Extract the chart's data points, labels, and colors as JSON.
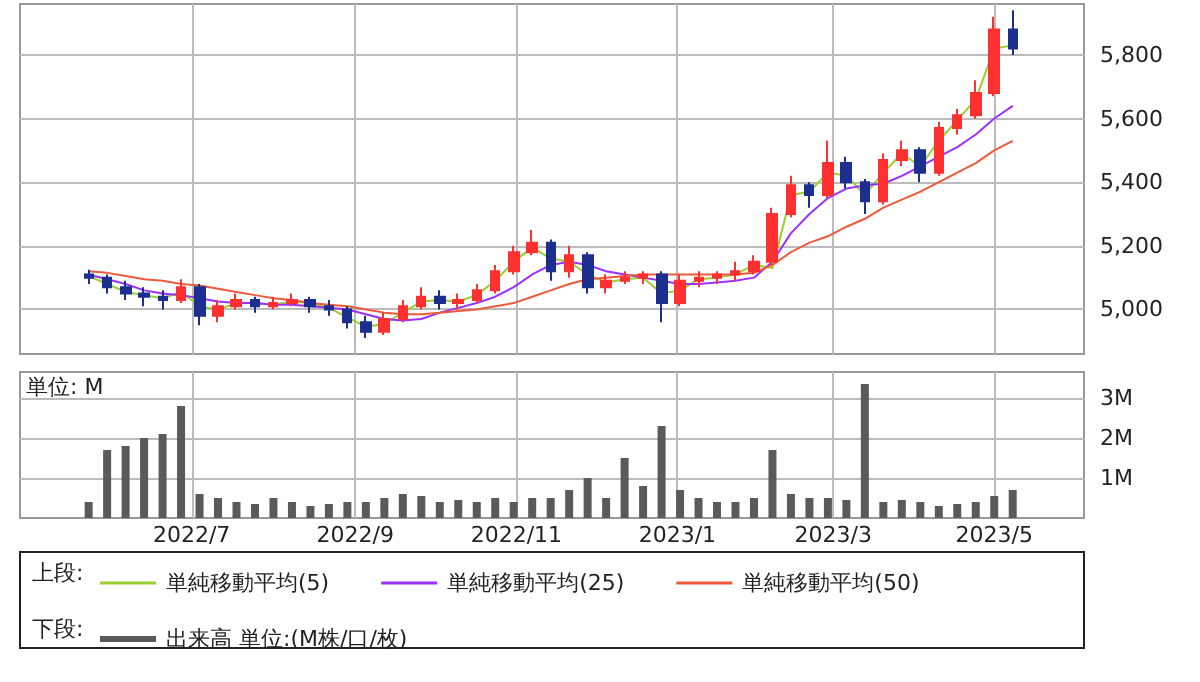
{
  "chart_data": [
    {
      "type": "candlestick",
      "legend_title": "上段:",
      "legend": "bottom",
      "grid": true,
      "tick_labels": "y",
      "marker": "none",
      "x": [
        "2022-05-23",
        "2022-05-30",
        "2022-06-06",
        "2022-06-13",
        "2022-06-20",
        "2022-06-27",
        "2022-07-04",
        "2022-07-11",
        "2022-07-18",
        "2022-07-25",
        "2022-08-01",
        "2022-08-08",
        "2022-08-15",
        "2022-08-22",
        "2022-08-29",
        "2022-09-05",
        "2022-09-12",
        "2022-09-19",
        "2022-09-26",
        "2022-10-03",
        "2022-10-10",
        "2022-10-17",
        "2022-10-24",
        "2022-10-31",
        "2022-11-07",
        "2022-11-14",
        "2022-11-21",
        "2022-11-28",
        "2022-12-05",
        "2022-12-12",
        "2022-12-19",
        "2022-12-26",
        "2023-01-02",
        "2023-01-09",
        "2023-01-16",
        "2023-01-23",
        "2023-01-30",
        "2023-02-06",
        "2023-02-13",
        "2023-02-20",
        "2023-02-27",
        "2023-03-06",
        "2023-03-13",
        "2023-03-20",
        "2023-03-27",
        "2023-04-03",
        "2023-04-10",
        "2023-04-17",
        "2023-04-24",
        "2023-05-01",
        "2023-05-08"
      ],
      "ohlc": [
        [
          5110,
          5125,
          5080,
          5100
        ],
        [
          5100,
          5110,
          5050,
          5070
        ],
        [
          5070,
          5090,
          5030,
          5050
        ],
        [
          5050,
          5070,
          5010,
          5040
        ],
        [
          5040,
          5060,
          5000,
          5030
        ],
        [
          5030,
          5095,
          5020,
          5070
        ],
        [
          5070,
          5080,
          4950,
          4980
        ],
        [
          4980,
          5030,
          4960,
          5010
        ],
        [
          5010,
          5050,
          5000,
          5030
        ],
        [
          5030,
          5040,
          4990,
          5010
        ],
        [
          5010,
          5040,
          5000,
          5020
        ],
        [
          5020,
          5050,
          5010,
          5030
        ],
        [
          5030,
          5040,
          4990,
          5010
        ],
        [
          5010,
          5030,
          4980,
          5000
        ],
        [
          5000,
          5010,
          4940,
          4960
        ],
        [
          4960,
          4980,
          4910,
          4930
        ],
        [
          4930,
          4990,
          4920,
          4970
        ],
        [
          4970,
          5030,
          4960,
          5010
        ],
        [
          5010,
          5070,
          5000,
          5040
        ],
        [
          5040,
          5060,
          5000,
          5020
        ],
        [
          5020,
          5050,
          5000,
          5030
        ],
        [
          5030,
          5080,
          5020,
          5060
        ],
        [
          5060,
          5140,
          5050,
          5120
        ],
        [
          5120,
          5200,
          5110,
          5180
        ],
        [
          5180,
          5250,
          5170,
          5210
        ],
        [
          5210,
          5220,
          5090,
          5120
        ],
        [
          5120,
          5200,
          5100,
          5170
        ],
        [
          5170,
          5180,
          5050,
          5070
        ],
        [
          5070,
          5110,
          5050,
          5090
        ],
        [
          5090,
          5120,
          5080,
          5100
        ],
        [
          5100,
          5120,
          5080,
          5110
        ],
        [
          5110,
          5120,
          4960,
          5020
        ],
        [
          5020,
          5110,
          5010,
          5090
        ],
        [
          5090,
          5120,
          5070,
          5100
        ],
        [
          5100,
          5120,
          5080,
          5110
        ],
        [
          5110,
          5150,
          5090,
          5120
        ],
        [
          5120,
          5170,
          5110,
          5150
        ],
        [
          5150,
          5320,
          5140,
          5300
        ],
        [
          5300,
          5420,
          5290,
          5390
        ],
        [
          5390,
          5400,
          5320,
          5360
        ],
        [
          5360,
          5530,
          5350,
          5460
        ],
        [
          5460,
          5480,
          5380,
          5400
        ],
        [
          5400,
          5410,
          5300,
          5340
        ],
        [
          5340,
          5490,
          5330,
          5470
        ],
        [
          5470,
          5530,
          5450,
          5500
        ],
        [
          5500,
          5510,
          5400,
          5430
        ],
        [
          5430,
          5590,
          5420,
          5570
        ],
        [
          5570,
          5630,
          5550,
          5610
        ],
        [
          5610,
          5720,
          5600,
          5680
        ],
        [
          5680,
          5920,
          5670,
          5880
        ],
        [
          5880,
          5940,
          5800,
          5820
        ]
      ],
      "series": [
        {
          "type": "line",
          "name": "単純移動平均(5)",
          "color": "#9acd32",
          "values": [
            5105,
            5080,
            5055,
            5045,
            5035,
            5055,
            5010,
            5000,
            5020,
            5020,
            5015,
            5025,
            5020,
            5005,
            4975,
            4945,
            4955,
            4990,
            5025,
            5030,
            5025,
            5045,
            5090,
            5150,
            5195,
            5160,
            5150,
            5110,
            5085,
            5095,
            5100,
            5050,
            5060,
            5095,
            5100,
            5110,
            5140,
            5130,
            5360,
            5370,
            5430,
            5420,
            5360,
            5430,
            5490,
            5450,
            5530,
            5595,
            5660,
            5820,
            5830
          ]
        },
        {
          "type": "line",
          "name": "単純移動平均(25)",
          "color": "#9b30ff",
          "values": [
            5110,
            5095,
            5080,
            5060,
            5050,
            5045,
            5035,
            5025,
            5020,
            5020,
            5015,
            5015,
            5010,
            5005,
            5000,
            4985,
            4970,
            4965,
            4970,
            4990,
            5005,
            5020,
            5040,
            5070,
            5110,
            5140,
            5150,
            5140,
            5120,
            5110,
            5100,
            5090,
            5080,
            5080,
            5085,
            5090,
            5100,
            5150,
            5240,
            5300,
            5350,
            5380,
            5390,
            5395,
            5420,
            5450,
            5480,
            5510,
            5550,
            5600,
            5640
          ]
        },
        {
          "type": "line",
          "name": "単純移動平均(50)",
          "color": "#f05a3c",
          "values": [
            5120,
            5115,
            5105,
            5095,
            5090,
            5080,
            5075,
            5065,
            5055,
            5045,
            5035,
            5030,
            5020,
            5015,
            5010,
            5000,
            4990,
            4985,
            4985,
            4990,
            4995,
            5000,
            5010,
            5020,
            5040,
            5060,
            5080,
            5095,
            5100,
            5105,
            5110,
            5110,
            5110,
            5110,
            5110,
            5110,
            5115,
            5140,
            5180,
            5210,
            5230,
            5260,
            5285,
            5320,
            5345,
            5370,
            5400,
            5430,
            5460,
            5500,
            5530
          ]
        }
      ],
      "xlim": [
        "2022-04-27",
        "2023-06-04"
      ],
      "xticks": [
        "2022-07-01",
        "2022-09-01",
        "2022-11-01",
        "2023-01-01",
        "2023-03-01",
        "2023-05-01"
      ],
      "ylim": [
        4860,
        5960
      ],
      "yticks": [
        {
          "value": 5000,
          "label": "5,000"
        },
        {
          "value": 5200,
          "label": "5,200"
        },
        {
          "value": 5400,
          "label": "5,400"
        },
        {
          "value": 5600,
          "label": "5,600"
        },
        {
          "value": 5800,
          "label": "5,800"
        }
      ]
    },
    {
      "type": "bar",
      "ylabel": "単位: M",
      "legend_title": "下段:",
      "legend": "bottom",
      "grid": true,
      "x": [
        "2022-05-23",
        "2022-05-30",
        "2022-06-06",
        "2022-06-13",
        "2022-06-20",
        "2022-06-27",
        "2022-07-04",
        "2022-07-11",
        "2022-07-18",
        "2022-07-25",
        "2022-08-01",
        "2022-08-08",
        "2022-08-15",
        "2022-08-22",
        "2022-08-29",
        "2022-09-05",
        "2022-09-12",
        "2022-09-19",
        "2022-09-26",
        "2022-10-03",
        "2022-10-10",
        "2022-10-17",
        "2022-10-24",
        "2022-10-31",
        "2022-11-07",
        "2022-11-14",
        "2022-11-21",
        "2022-11-28",
        "2022-12-05",
        "2022-12-12",
        "2022-12-19",
        "2022-12-26",
        "2023-01-02",
        "2023-01-09",
        "2023-01-16",
        "2023-01-23",
        "2023-01-30",
        "2023-02-06",
        "2023-02-13",
        "2023-02-20",
        "2023-02-27",
        "2023-03-06",
        "2023-03-13",
        "2023-03-20",
        "2023-03-27",
        "2023-04-03",
        "2023-04-10",
        "2023-04-17",
        "2023-04-24",
        "2023-05-01",
        "2023-05-08"
      ],
      "series": [
        {
          "name": "出来高 単位:(M株/口/枚)",
          "color": "#5a5a5a",
          "values": [
            0.4,
            1.7,
            1.8,
            2.0,
            2.1,
            2.8,
            0.6,
            0.5,
            0.4,
            0.35,
            0.5,
            0.4,
            0.3,
            0.35,
            0.4,
            0.4,
            0.5,
            0.6,
            0.55,
            0.4,
            0.45,
            0.4,
            0.5,
            0.4,
            0.5,
            0.5,
            0.7,
            1.0,
            0.5,
            1.5,
            0.8,
            2.3,
            0.7,
            0.5,
            0.4,
            0.4,
            0.5,
            1.7,
            0.6,
            0.5,
            0.5,
            0.45,
            3.35,
            0.4,
            0.45,
            0.4,
            0.3,
            0.35,
            0.4,
            0.55,
            0.7
          ]
        }
      ],
      "xlim": [
        "2022-04-27",
        "2023-06-04"
      ],
      "xticks": [
        {
          "value": "2022-07-01",
          "label": "2022/7"
        },
        {
          "value": "2022-09-01",
          "label": "2022/9"
        },
        {
          "value": "2022-11-01",
          "label": "2022/11"
        },
        {
          "value": "2023-01-01",
          "label": "2023/1"
        },
        {
          "value": "2023-03-01",
          "label": "2023/3"
        },
        {
          "value": "2023-05-01",
          "label": "2023/5"
        }
      ],
      "ylim": [
        0,
        3.65
      ],
      "yticks": [
        {
          "value": 1,
          "label": "1M"
        },
        {
          "value": 2,
          "label": "2M"
        },
        {
          "value": 3,
          "label": "3M"
        }
      ]
    }
  ]
}
